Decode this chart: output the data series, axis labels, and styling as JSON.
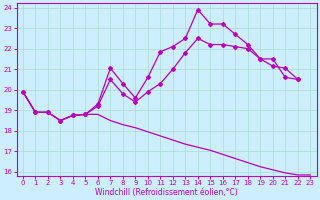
{
  "xlabel": "Windchill (Refroidissement éolien,°C)",
  "bg_color": "#cceeff",
  "grid_color": "#aaddcc",
  "line_color": "#bb00bb",
  "xlim": [
    -0.5,
    23.5
  ],
  "ylim": [
    15.8,
    24.2
  ],
  "xticks": [
    0,
    1,
    2,
    3,
    4,
    5,
    6,
    7,
    8,
    9,
    10,
    11,
    12,
    13,
    14,
    15,
    16,
    17,
    18,
    19,
    20,
    21,
    22,
    23
  ],
  "yticks": [
    16,
    17,
    18,
    19,
    20,
    21,
    22,
    23,
    24
  ],
  "line1_x": [
    0,
    1,
    2,
    3,
    4,
    5,
    6,
    7,
    8,
    9,
    10,
    11,
    12,
    13,
    14,
    15,
    16,
    17,
    18,
    19,
    20,
    21,
    22,
    23
  ],
  "line1_y": [
    19.9,
    18.9,
    18.9,
    18.5,
    18.75,
    18.8,
    18.8,
    18.5,
    18.3,
    18.15,
    17.95,
    17.75,
    17.55,
    17.35,
    17.2,
    17.05,
    16.85,
    16.65,
    16.45,
    16.25,
    16.1,
    15.95,
    15.85,
    15.85
  ],
  "line2_x": [
    0,
    1,
    2,
    3,
    4,
    5,
    6,
    7,
    8,
    9,
    10,
    11,
    12,
    13,
    14,
    15,
    16,
    17,
    18,
    19,
    20,
    21,
    22
  ],
  "line2_y": [
    19.9,
    18.9,
    18.9,
    18.5,
    18.75,
    18.8,
    19.3,
    21.05,
    20.3,
    19.6,
    20.6,
    21.85,
    22.1,
    22.5,
    23.9,
    23.2,
    23.2,
    22.7,
    22.2,
    21.5,
    21.15,
    21.05,
    20.5
  ],
  "line3_x": [
    0,
    1,
    2,
    3,
    4,
    5,
    6,
    7,
    8,
    9,
    10,
    11,
    12,
    13,
    14,
    15,
    16,
    17,
    18,
    19,
    20,
    21,
    22
  ],
  "line3_y": [
    19.9,
    18.9,
    18.9,
    18.5,
    18.75,
    18.8,
    19.2,
    20.5,
    19.8,
    19.4,
    19.9,
    20.3,
    21.0,
    21.8,
    22.5,
    22.2,
    22.2,
    22.1,
    22.0,
    21.5,
    21.5,
    20.6,
    20.5
  ]
}
